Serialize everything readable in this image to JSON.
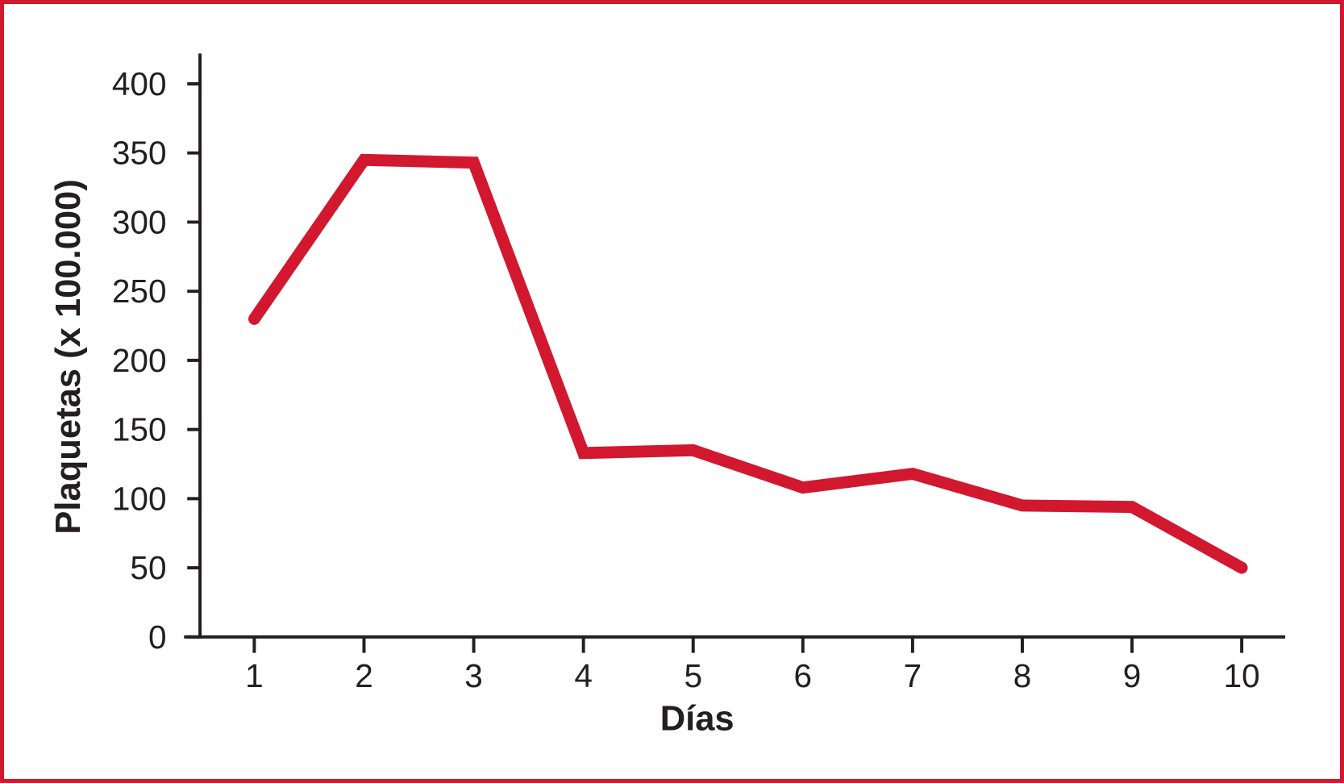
{
  "figure": {
    "background_color": "#ffffff",
    "border_color": "#d2182f"
  },
  "chart_data": {
    "type": "line",
    "title": "",
    "xlabel": "Días",
    "ylabel": "Plaquetas (x 100.000)",
    "x": [
      1,
      2,
      3,
      4,
      5,
      6,
      7,
      8,
      9,
      10
    ],
    "x_tick_labels": [
      "1",
      "2",
      "3",
      "4",
      "5",
      "6",
      "7",
      "8",
      "9",
      "10"
    ],
    "values": [
      230,
      345,
      343,
      133,
      135,
      108,
      118,
      95,
      94,
      50
    ],
    "y_ticks": [
      0,
      50,
      100,
      150,
      200,
      250,
      300,
      350,
      400
    ],
    "y_tick_labels": [
      "0",
      "50",
      "100",
      "150",
      "200",
      "250",
      "300",
      "350",
      "400"
    ],
    "ylim": [
      0,
      425
    ],
    "xlim": [
      0.35,
      10.45
    ],
    "grid": false,
    "legend_position": "none",
    "line_color": "#d2182f",
    "axis_color": "#231f20"
  }
}
